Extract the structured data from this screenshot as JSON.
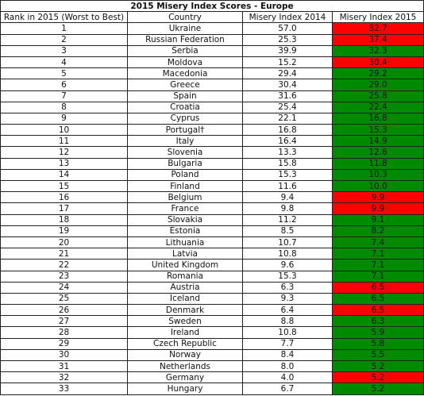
{
  "table": {
    "title": "2015 Misery Index Scores - Europe",
    "header": [
      "Rank in 2015 (Worst to Best)",
      "Country",
      "Misery Index 2014",
      "Misery Index 2015"
    ],
    "rows": [
      [
        1,
        "Ukraine",
        "57.0",
        "82.7"
      ],
      [
        2,
        "Russian Federation",
        "25.3",
        "37.4"
      ],
      [
        3,
        "Serbia",
        "39.9",
        "32.3"
      ],
      [
        4,
        "Moldova",
        "15.2",
        "30.4"
      ],
      [
        5,
        "Macedonia",
        "29.4",
        "29.2"
      ],
      [
        6,
        "Greece",
        "30.4",
        "29.0"
      ],
      [
        7,
        "Spain",
        "31.6",
        "25.8"
      ],
      [
        8,
        "Croatia",
        "25.4",
        "22.4"
      ],
      [
        9,
        "Cyprus",
        "22.1",
        "16.8"
      ],
      [
        10,
        "Portugal†",
        "16.8",
        "15.3"
      ],
      [
        11,
        "Italy",
        "16.4",
        "14.9"
      ],
      [
        12,
        "Slovenia",
        "13.3",
        "12.6"
      ],
      [
        13,
        "Bulgaria",
        "15.8",
        "11.8"
      ],
      [
        14,
        "Poland",
        "15.3",
        "10.3"
      ],
      [
        15,
        "Finland",
        "11.6",
        "10.0"
      ],
      [
        16,
        "Belgium",
        "9.4",
        "9.9"
      ],
      [
        17,
        "France",
        "9.8",
        "9.9"
      ],
      [
        18,
        "Slovakia",
        "11.2",
        "9.1"
      ],
      [
        19,
        "Estonia",
        "8.5",
        "8.2"
      ],
      [
        20,
        "Lithuania",
        "10.7",
        "7.4"
      ],
      [
        21,
        "Latvia",
        "10.8",
        "7.1"
      ],
      [
        22,
        "United Kingdom",
        "9.6",
        "7.1"
      ],
      [
        23,
        "Romania",
        "15.3",
        "7.1"
      ],
      [
        24,
        "Austria",
        "6.3",
        "6.5"
      ],
      [
        25,
        "Iceland",
        "9.3",
        "6.5"
      ],
      [
        26,
        "Denmark",
        "6.4",
        "6.5"
      ],
      [
        27,
        "Sweden",
        "8.8",
        "6.3"
      ],
      [
        28,
        "Ireland",
        "10.8",
        "5.9"
      ],
      [
        29,
        "Czech Republic",
        "7.7",
        "5.8"
      ],
      [
        30,
        "Norway",
        "8.4",
        "5.5"
      ],
      [
        31,
        "Netherlands",
        "8.0",
        "5.2"
      ],
      [
        32,
        "Germany",
        "4.0",
        "5.2"
      ],
      [
        33,
        "Hungary",
        "6.7",
        "5.2"
      ]
    ],
    "colors": [
      "#ff0000",
      "#ff0000",
      "#008a00",
      "#ff0000",
      "#008a00",
      "#008a00",
      "#008a00",
      "#008a00",
      "#008a00",
      "#008a00",
      "#008a00",
      "#008a00",
      "#008a00",
      "#008a00",
      "#008a00",
      "#ff0000",
      "#ff0000",
      "#008a00",
      "#008a00",
      "#008a00",
      "#008a00",
      "#008a00",
      "#008a00",
      "#ff0000",
      "#008a00",
      "#ff0000",
      "#008a00",
      "#008a00",
      "#008a00",
      "#008a00",
      "#008a00",
      "#ff0000",
      "#008a00"
    ]
  }
}
